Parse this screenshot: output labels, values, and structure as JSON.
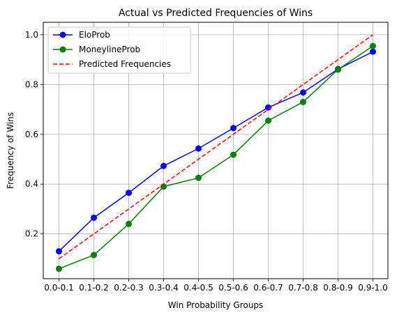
{
  "chart_data": {
    "type": "line",
    "title": "Actual vs Predicted Frequencies of Wins",
    "xlabel": "Win Probability Groups",
    "ylabel": "Frequency of Wins",
    "categories": [
      "0.0-0.1",
      "0.1-0.2",
      "0.2-0.3",
      "0.3-0.4",
      "0.4-0.5",
      "0.5-0.6",
      "0.6-0.7",
      "0.7-0.8",
      "0.8-0.9",
      "0.9-1.0"
    ],
    "ylim": [
      0.02,
      1.05
    ],
    "yticks": [
      "0.2",
      "0.4",
      "0.6",
      "0.8",
      "1.0"
    ],
    "grid": true,
    "legend_position": "top-left",
    "series": [
      {
        "name": "EloProb",
        "color": "#0000ff",
        "marker": "circle",
        "dashed": false,
        "values": [
          0.13,
          0.265,
          0.365,
          0.473,
          0.543,
          0.625,
          0.708,
          0.768,
          0.862,
          0.932
        ]
      },
      {
        "name": "MoneylineProb",
        "color": "#008000",
        "marker": "circle",
        "dashed": false,
        "values": [
          0.06,
          0.115,
          0.24,
          0.39,
          0.425,
          0.518,
          0.655,
          0.73,
          0.86,
          0.955
        ]
      },
      {
        "name": "Predicted Frequencies",
        "color": "#ff0000",
        "marker": "none",
        "dashed": true,
        "values": [
          0.1,
          0.2,
          0.3,
          0.4,
          0.5,
          0.6,
          0.7,
          0.8,
          0.9,
          1.0
        ]
      }
    ]
  }
}
